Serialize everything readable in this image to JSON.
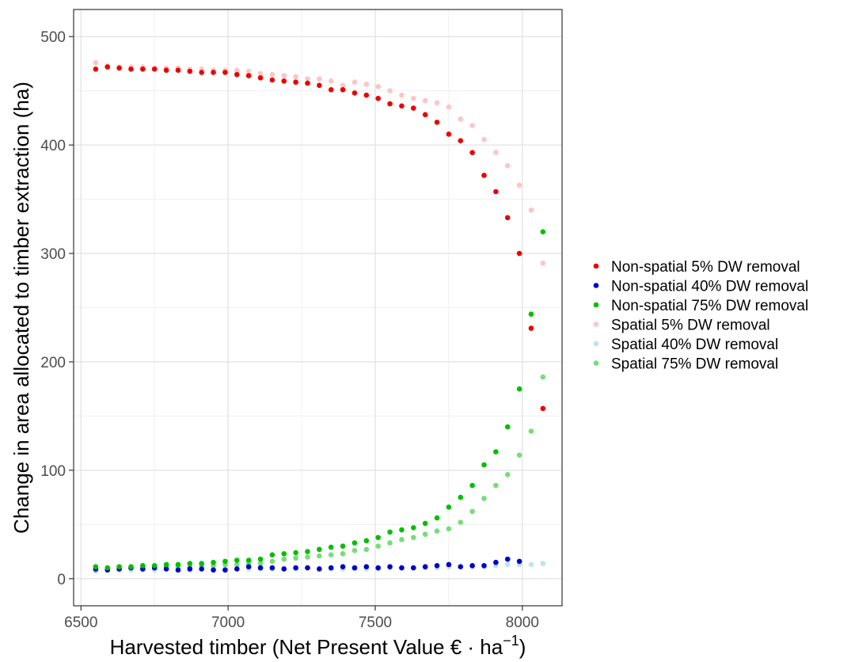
{
  "chart_data": {
    "type": "scatter",
    "title": "",
    "xlabel": "Harvested timber (Net Present Value € · ha",
    "xlabel_superscript": "−1",
    "xlabel_suffix": ")",
    "ylabel": "Change in area allocated to timber extraction (ha)",
    "xlim": [
      6475,
      8135
    ],
    "ylim": [
      -25,
      525
    ],
    "xticks": [
      6500,
      7000,
      7500,
      8000
    ],
    "xticklabels": [
      "6500",
      "7000",
      "7500",
      "8000"
    ],
    "yticks": [
      0,
      100,
      200,
      300,
      400,
      500
    ],
    "yticklabels": [
      "0",
      "100",
      "200",
      "300",
      "400",
      "500"
    ],
    "grid": true,
    "legend_position": "right",
    "x": [
      6550,
      6590,
      6630,
      6670,
      6710,
      6750,
      6790,
      6830,
      6870,
      6910,
      6950,
      6990,
      7030,
      7070,
      7110,
      7150,
      7190,
      7230,
      7270,
      7310,
      7350,
      7390,
      7430,
      7470,
      7510,
      7550,
      7590,
      7630,
      7670,
      7710,
      7750,
      7790,
      7830,
      7870,
      7910,
      7950,
      7990,
      8030,
      8070,
      8110
    ],
    "series": [
      {
        "name": "Non-spatial 5% DW removal",
        "color": "#ee0000",
        "values": [
          470,
          472,
          471,
          470,
          470,
          470,
          469,
          469,
          468,
          467,
          467,
          467,
          465,
          464,
          462,
          460,
          459,
          458,
          457,
          455,
          451,
          451,
          448,
          446,
          443,
          438,
          436,
          434,
          428,
          421,
          410,
          404,
          393,
          372,
          357,
          333,
          300,
          231,
          157,
          null
        ]
      },
      {
        "name": "Non-spatial 40% DW removal",
        "color": "#0000cc",
        "values": [
          9,
          8,
          9,
          10,
          9,
          10,
          9,
          8,
          9,
          9,
          8,
          8,
          9,
          11,
          10,
          10,
          9,
          10,
          10,
          9,
          10,
          11,
          10,
          11,
          10,
          11,
          10,
          10,
          11,
          12,
          13,
          11,
          12,
          12,
          15,
          18,
          16,
          null,
          null,
          null
        ]
      },
      {
        "name": "Non-spatial 75% DW removal",
        "color": "#00c000",
        "values": [
          11,
          10,
          11,
          11,
          12,
          12,
          13,
          13,
          14,
          14,
          15,
          16,
          17,
          17,
          18,
          22,
          23,
          24,
          25,
          27,
          29,
          30,
          33,
          35,
          38,
          43,
          45,
          47,
          51,
          56,
          66,
          75,
          86,
          105,
          117,
          140,
          175,
          244,
          320,
          null
        ]
      },
      {
        "name": "Spatial 5% DW removal",
        "color": "#ffc4c4",
        "values": [
          476,
          473,
          472,
          472,
          472,
          471,
          471,
          471,
          470,
          470,
          469,
          469,
          469,
          468,
          466,
          465,
          464,
          463,
          461,
          461,
          459,
          455,
          458,
          456,
          454,
          450,
          446,
          443,
          441,
          439,
          435,
          424,
          418,
          405,
          393,
          381,
          363,
          340,
          291,
          null
        ]
      },
      {
        "name": "Spatial 40% DW removal",
        "color": "#bde3f5",
        "values": [
          7,
          8,
          8,
          8,
          8,
          8,
          9,
          8,
          8,
          9,
          9,
          9,
          9,
          9,
          9,
          9,
          9,
          9,
          10,
          9,
          9,
          9,
          9,
          9,
          9,
          10,
          10,
          10,
          10,
          10,
          11,
          11,
          11,
          11,
          12,
          13,
          13,
          13,
          14,
          null
        ]
      },
      {
        "name": "Spatial 75% DW removal",
        "color": "#77dd77",
        "values": [
          8,
          9,
          9,
          10,
          10,
          10,
          11,
          11,
          11,
          12,
          12,
          13,
          13,
          14,
          14,
          16,
          18,
          19,
          20,
          21,
          22,
          23,
          26,
          27,
          30,
          33,
          36,
          38,
          41,
          44,
          46,
          52,
          62,
          74,
          86,
          96,
          114,
          136,
          186,
          null
        ]
      }
    ]
  }
}
